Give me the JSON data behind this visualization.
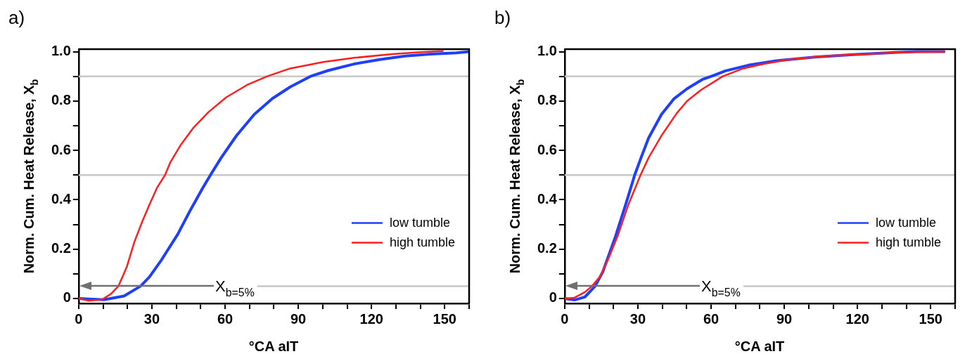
{
  "chart_data": [
    {
      "type": "line",
      "title": "a)",
      "xlabel": "°CA aIT",
      "ylabel": "Norm. Cum. Heat Release, X$_{b}$",
      "legend": "bottom right",
      "marker": "none",
      "line_style": "solid",
      "xlim": [
        0,
        160
      ],
      "ylim": [
        -0.02,
        1.01
      ],
      "xticks": [
        0,
        {
          "value": 10,
          "label": null
        },
        {
          "value": 20,
          "label": null
        },
        30,
        {
          "value": 40,
          "label": null
        },
        {
          "value": 50,
          "label": null
        },
        60,
        {
          "value": 70,
          "label": null
        },
        {
          "value": 80,
          "label": null
        },
        90,
        {
          "value": 100,
          "label": null
        },
        {
          "value": 110,
          "label": null
        },
        120,
        {
          "value": 130,
          "label": null
        },
        {
          "value": 140,
          "label": null
        },
        150,
        {
          "value": 160,
          "label": null
        }
      ],
      "yticks": [
        0,
        {
          "value": 0.1,
          "label": null
        },
        0.2,
        {
          "value": 0.3,
          "label": null
        },
        0.4,
        {
          "value": 0.5,
          "label": null
        },
        0.6,
        {
          "value": 0.7,
          "label": null
        },
        0.8,
        {
          "value": 0.9,
          "label": null
        },
        {
          "value": 1,
          "label": "1.0"
        }
      ],
      "ref_lines": [
        {
          "axis": "y",
          "value": 0.9,
          "color": "#c8c8c8"
        },
        {
          "axis": "y",
          "value": 0.5,
          "color": "#c8c8c8"
        },
        {
          "axis": "y",
          "value": 0.05,
          "label": "X$_{b=5%}$",
          "color": "#c8c8c8"
        }
      ],
      "series": [
        {
          "name": "low tumble",
          "color": "#1f3fff",
          "x": [
            0,
            10.3,
            18.6,
            25.4,
            29,
            34,
            40.6,
            45.9,
            51,
            54,
            58.4,
            64.7,
            72,
            79.4,
            86.7,
            95,
            102.4,
            112.9,
            123.4,
            133.8,
            144.3,
            154.8,
            160
          ],
          "values": [
            0,
            -0.005,
            0.01,
            0.05,
            0.087,
            0.157,
            0.26,
            0.36,
            0.45,
            0.5,
            0.57,
            0.66,
            0.746,
            0.81,
            0.857,
            0.9,
            0.924,
            0.95,
            0.968,
            0.982,
            0.99,
            0.995,
            1.0
          ]
        },
        {
          "name": "high tumble",
          "color": "#ff1f1f",
          "x": [
            0,
            4,
            9.7,
            13.4,
            16.3,
            19.7,
            22.8,
            26,
            29,
            32.2,
            35.4,
            37.5,
            41.7,
            46.9,
            53.2,
            60.5,
            69,
            77.3,
            86.7,
            100.3,
            112.9,
            128.6,
            139,
            149.5
          ],
          "values": [
            0,
            -0.009,
            -0.004,
            0.02,
            0.05,
            0.127,
            0.228,
            0.31,
            0.38,
            0.45,
            0.5,
            0.55,
            0.62,
            0.69,
            0.755,
            0.815,
            0.865,
            0.9,
            0.932,
            0.958,
            0.975,
            0.99,
            0.997,
            1.003
          ]
        }
      ]
    },
    {
      "type": "line",
      "title": "b)",
      "xlabel": "°CA aIT",
      "ylabel": "Norm. Cum. Heat Release, X$_{b}$",
      "legend": "bottom right",
      "marker": "none",
      "line_style": "solid",
      "xlim": [
        0,
        160
      ],
      "ylim": [
        -0.02,
        1.01
      ],
      "xticks": [
        0,
        {
          "value": 10,
          "label": null
        },
        {
          "value": 20,
          "label": null
        },
        30,
        {
          "value": 40,
          "label": null
        },
        {
          "value": 50,
          "label": null
        },
        60,
        {
          "value": 70,
          "label": null
        },
        {
          "value": 80,
          "label": null
        },
        90,
        {
          "value": 100,
          "label": null
        },
        {
          "value": 110,
          "label": null
        },
        120,
        {
          "value": 130,
          "label": null
        },
        {
          "value": 140,
          "label": null
        },
        150,
        {
          "value": 160,
          "label": null
        }
      ],
      "yticks": [
        0,
        {
          "value": 0.1,
          "label": null
        },
        0.2,
        {
          "value": 0.3,
          "label": null
        },
        0.4,
        {
          "value": 0.5,
          "label": null
        },
        0.6,
        {
          "value": 0.7,
          "label": null
        },
        0.8,
        {
          "value": 0.9,
          "label": null
        },
        {
          "value": 1,
          "label": "1.0"
        }
      ],
      "ref_lines": [
        {
          "axis": "y",
          "value": 0.9,
          "color": "#c8c8c8"
        },
        {
          "axis": "y",
          "value": 0.5,
          "color": "#c8c8c8"
        },
        {
          "axis": "y",
          "value": 0.05,
          "label": "X$_{b=5%}$",
          "color": "#c8c8c8"
        }
      ],
      "series": [
        {
          "name": "low tumble",
          "color": "#1f3fff",
          "x": [
            0,
            4,
            8.3,
            12.5,
            15.6,
            20.8,
            25,
            28.7,
            31.3,
            34.4,
            39.7,
            44.9,
            50.2,
            56.4,
            60.1,
            65.9,
            75.3,
            86.8,
            102.5,
            118.2,
            133.9,
            144.4,
            155.9
          ],
          "values": [
            0,
            -0.006,
            0.006,
            0.05,
            0.107,
            0.25,
            0.38,
            0.5,
            0.57,
            0.65,
            0.746,
            0.81,
            0.85,
            0.887,
            0.9,
            0.922,
            0.945,
            0.963,
            0.978,
            0.988,
            0.996,
            1.0,
            1.0
          ]
        },
        {
          "name": "high tumble",
          "color": "#ff1f1f",
          "x": [
            0,
            4,
            8.3,
            11.2,
            14.6,
            18.2,
            21.9,
            26.1,
            31.1,
            34.4,
            39.7,
            45.9,
            50.2,
            55.9,
            64.8,
            73.2,
            81.6,
            92,
            107.7,
            123.5,
            139.2,
            155.9
          ],
          "values": [
            0,
            0.003,
            0.026,
            0.05,
            0.09,
            0.167,
            0.258,
            0.38,
            0.5,
            0.57,
            0.66,
            0.75,
            0.8,
            0.845,
            0.9,
            0.932,
            0.95,
            0.968,
            0.983,
            0.99,
            0.998,
            1.0
          ]
        }
      ]
    }
  ]
}
